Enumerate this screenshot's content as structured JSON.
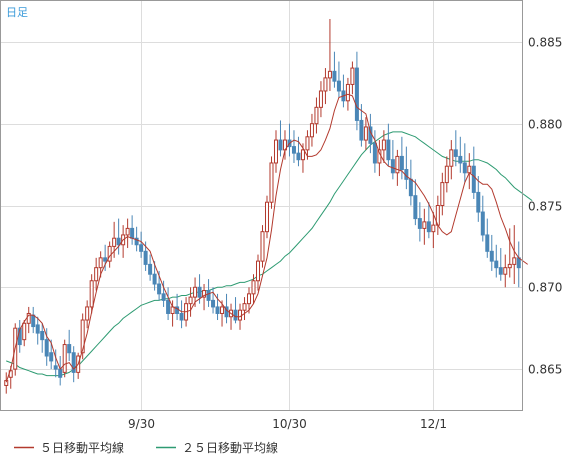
{
  "corner_label": "日足",
  "chart_data": {
    "type": "candlestick",
    "title": "",
    "xlabel": "",
    "ylabel": "",
    "ylim": [
      0.8625,
      0.8875
    ],
    "yticks": [
      0.865,
      0.87,
      0.875,
      0.88,
      0.885
    ],
    "ytick_labels": [
      "0.865",
      "0.870",
      "0.875",
      "0.880",
      "0.885"
    ],
    "xtick_labels": [
      {
        "index": 30,
        "label": "9/30"
      },
      {
        "index": 63,
        "label": "10/30"
      },
      {
        "index": 95,
        "label": "12/1"
      }
    ],
    "grid": true,
    "legend_position": "bottom",
    "colors": {
      "up": "#b33a2e",
      "down": "#4a86b6",
      "ma5": "#b33a2e",
      "ma25": "#2e9b72",
      "corner": "#3a9ad9"
    },
    "series": [
      {
        "name": "５日移動平均線",
        "key": "ma5",
        "values": [
          0.8642,
          0.865,
          0.8663,
          0.8674,
          0.8679,
          0.8683,
          0.8683,
          0.8681,
          0.8678,
          0.867,
          0.8666,
          0.8657,
          0.865,
          0.8653,
          0.8654,
          0.865,
          0.8653,
          0.8662,
          0.8672,
          0.8685,
          0.8697,
          0.8708,
          0.8714,
          0.8719,
          0.8722,
          0.8725,
          0.8729,
          0.8731,
          0.873,
          0.8729,
          0.8728,
          0.8725,
          0.8722,
          0.8714,
          0.8707,
          0.87,
          0.8694,
          0.8688,
          0.8687,
          0.8685,
          0.8685,
          0.8686,
          0.8691,
          0.8693,
          0.8695,
          0.8696,
          0.8697,
          0.8693,
          0.869,
          0.8686,
          0.8684,
          0.8682,
          0.8682,
          0.8684,
          0.8686,
          0.869,
          0.8696,
          0.8707,
          0.8718,
          0.8735,
          0.8756,
          0.8772,
          0.8784,
          0.8788,
          0.879,
          0.8789,
          0.8785,
          0.878,
          0.878,
          0.8781,
          0.8784,
          0.879,
          0.8797,
          0.8808,
          0.8816,
          0.8817,
          0.8818,
          0.8817,
          0.881,
          0.8808,
          0.8806,
          0.8795,
          0.879,
          0.8782,
          0.8777,
          0.8774,
          0.8773,
          0.8772,
          0.8771,
          0.8768,
          0.8766,
          0.8764,
          0.876,
          0.8756,
          0.8751,
          0.8745,
          0.8738,
          0.8734,
          0.8732,
          0.8734,
          0.8744,
          0.8754,
          0.8764,
          0.877,
          0.8768,
          0.8765,
          0.8763,
          0.8763,
          0.876,
          0.8752,
          0.8743,
          0.8736,
          0.8728,
          0.8722,
          0.8718,
          0.8716,
          0.8714
        ]
      },
      {
        "name": "２５日移動平均線",
        "key": "ma25",
        "values": [
          0.8655,
          0.8654,
          0.8653,
          0.8651,
          0.865,
          0.8649,
          0.8648,
          0.8647,
          0.8647,
          0.8646,
          0.8646,
          0.8646,
          0.8646,
          0.8647,
          0.8648,
          0.865,
          0.8652,
          0.8655,
          0.8658,
          0.8661,
          0.8664,
          0.8667,
          0.867,
          0.8673,
          0.8676,
          0.8678,
          0.8681,
          0.8683,
          0.8685,
          0.8687,
          0.8689,
          0.869,
          0.8691,
          0.8692,
          0.8692,
          0.8693,
          0.8693,
          0.8694,
          0.8694,
          0.8695,
          0.8695,
          0.8696,
          0.8697,
          0.8697,
          0.8698,
          0.8698,
          0.8699,
          0.87,
          0.87,
          0.8701,
          0.8701,
          0.8702,
          0.8703,
          0.8703,
          0.8704,
          0.8705,
          0.8707,
          0.8708,
          0.871,
          0.8712,
          0.8714,
          0.8716,
          0.8719,
          0.8721,
          0.8724,
          0.8727,
          0.873,
          0.8733,
          0.8736,
          0.874,
          0.8744,
          0.8748,
          0.8752,
          0.8757,
          0.8761,
          0.8765,
          0.8769,
          0.8773,
          0.8777,
          0.8781,
          0.8784,
          0.8787,
          0.8789,
          0.8791,
          0.8793,
          0.8794,
          0.8795,
          0.8795,
          0.8795,
          0.8794,
          0.8793,
          0.8792,
          0.879,
          0.8788,
          0.8786,
          0.8784,
          0.8782,
          0.878,
          0.8779,
          0.8778,
          0.8777,
          0.8777,
          0.8777,
          0.8777,
          0.8778,
          0.8778,
          0.8777,
          0.8776,
          0.8774,
          0.8772,
          0.8769,
          0.8767,
          0.8764,
          0.8761,
          0.8759,
          0.8757,
          0.8755,
          0.8753
        ]
      }
    ],
    "candles": [
      [
        0.864,
        0.8648,
        0.8635,
        0.8643
      ],
      [
        0.8645,
        0.8652,
        0.8638,
        0.8649
      ],
      [
        0.865,
        0.8678,
        0.8646,
        0.8675
      ],
      [
        0.8675,
        0.868,
        0.866,
        0.8665
      ],
      [
        0.8668,
        0.868,
        0.8664,
        0.8678
      ],
      [
        0.8678,
        0.8688,
        0.8672,
        0.8684
      ],
      [
        0.8683,
        0.8688,
        0.8672,
        0.8676
      ],
      [
        0.8677,
        0.8682,
        0.8665,
        0.8672
      ],
      [
        0.8673,
        0.8678,
        0.866,
        0.8668
      ],
      [
        0.8668,
        0.8675,
        0.8652,
        0.8658
      ],
      [
        0.866,
        0.8668,
        0.865,
        0.8655
      ],
      [
        0.8652,
        0.8662,
        0.8645,
        0.865
      ],
      [
        0.865,
        0.8658,
        0.864,
        0.8645
      ],
      [
        0.8648,
        0.8668,
        0.8645,
        0.8665
      ],
      [
        0.8665,
        0.8674,
        0.8655,
        0.866
      ],
      [
        0.866,
        0.8664,
        0.8642,
        0.8648
      ],
      [
        0.8648,
        0.866,
        0.8644,
        0.8658
      ],
      [
        0.866,
        0.8684,
        0.8656,
        0.868
      ],
      [
        0.868,
        0.8692,
        0.8675,
        0.8688
      ],
      [
        0.8688,
        0.8708,
        0.8684,
        0.8704
      ],
      [
        0.8704,
        0.8718,
        0.8698,
        0.8712
      ],
      [
        0.8712,
        0.8722,
        0.8706,
        0.8718
      ],
      [
        0.8718,
        0.8726,
        0.871,
        0.8716
      ],
      [
        0.8716,
        0.8728,
        0.8712,
        0.8725
      ],
      [
        0.8725,
        0.874,
        0.8718,
        0.873
      ],
      [
        0.873,
        0.8742,
        0.872,
        0.8726
      ],
      [
        0.8726,
        0.8738,
        0.8718,
        0.8732
      ],
      [
        0.8732,
        0.8742,
        0.8724,
        0.8736
      ],
      [
        0.8736,
        0.8744,
        0.8726,
        0.873
      ],
      [
        0.873,
        0.8737,
        0.8722,
        0.8726
      ],
      [
        0.8726,
        0.8734,
        0.8718,
        0.8722
      ],
      [
        0.8722,
        0.8728,
        0.871,
        0.8714
      ],
      [
        0.8714,
        0.872,
        0.8704,
        0.8708
      ],
      [
        0.8708,
        0.8716,
        0.8698,
        0.8702
      ],
      [
        0.8702,
        0.871,
        0.8692,
        0.8696
      ],
      [
        0.8696,
        0.8704,
        0.8688,
        0.8692
      ],
      [
        0.8692,
        0.87,
        0.868,
        0.8684
      ],
      [
        0.8684,
        0.8692,
        0.8676,
        0.8688
      ],
      [
        0.8688,
        0.8696,
        0.868,
        0.8684
      ],
      [
        0.8684,
        0.8692,
        0.8675,
        0.868
      ],
      [
        0.868,
        0.8694,
        0.8676,
        0.869
      ],
      [
        0.869,
        0.87,
        0.8682,
        0.8694
      ],
      [
        0.8694,
        0.8706,
        0.8688,
        0.87
      ],
      [
        0.87,
        0.8708,
        0.869,
        0.8694
      ],
      [
        0.8694,
        0.8702,
        0.8686,
        0.8698
      ],
      [
        0.8698,
        0.8705,
        0.8688,
        0.8692
      ],
      [
        0.8692,
        0.87,
        0.8684,
        0.8688
      ],
      [
        0.8688,
        0.8696,
        0.868,
        0.8684
      ],
      [
        0.8684,
        0.8692,
        0.8676,
        0.8688
      ],
      [
        0.8688,
        0.8696,
        0.8678,
        0.8682
      ],
      [
        0.8682,
        0.869,
        0.8674,
        0.8686
      ],
      [
        0.8686,
        0.8694,
        0.8678,
        0.868
      ],
      [
        0.868,
        0.869,
        0.8674,
        0.8686
      ],
      [
        0.8686,
        0.8694,
        0.868,
        0.869
      ],
      [
        0.869,
        0.87,
        0.8684,
        0.8696
      ],
      [
        0.8696,
        0.8708,
        0.869,
        0.8704
      ],
      [
        0.8704,
        0.872,
        0.8698,
        0.8716
      ],
      [
        0.8716,
        0.8738,
        0.8712,
        0.8734
      ],
      [
        0.8734,
        0.8756,
        0.873,
        0.8752
      ],
      [
        0.8752,
        0.878,
        0.8748,
        0.8776
      ],
      [
        0.8776,
        0.8796,
        0.877,
        0.879
      ],
      [
        0.879,
        0.8802,
        0.878,
        0.8784
      ],
      [
        0.8784,
        0.8796,
        0.8778,
        0.879
      ],
      [
        0.879,
        0.88,
        0.878,
        0.8786
      ],
      [
        0.8786,
        0.8796,
        0.8776,
        0.8782
      ],
      [
        0.8782,
        0.8792,
        0.8774,
        0.8778
      ],
      [
        0.8778,
        0.8788,
        0.877,
        0.8784
      ],
      [
        0.8784,
        0.8796,
        0.8778,
        0.8792
      ],
      [
        0.8792,
        0.8806,
        0.8786,
        0.88
      ],
      [
        0.88,
        0.8816,
        0.8794,
        0.881
      ],
      [
        0.881,
        0.8826,
        0.8804,
        0.882
      ],
      [
        0.882,
        0.8834,
        0.8812,
        0.8828
      ],
      [
        0.8828,
        0.8864,
        0.882,
        0.8832
      ],
      [
        0.8832,
        0.8844,
        0.8822,
        0.8826
      ],
      [
        0.8826,
        0.8838,
        0.8816,
        0.882
      ],
      [
        0.882,
        0.883,
        0.881,
        0.8814
      ],
      [
        0.8814,
        0.8828,
        0.8808,
        0.8824
      ],
      [
        0.8824,
        0.8838,
        0.8818,
        0.8834
      ],
      [
        0.8834,
        0.8844,
        0.8796,
        0.8802
      ],
      [
        0.8802,
        0.8812,
        0.8786,
        0.879
      ],
      [
        0.879,
        0.8804,
        0.8784,
        0.8798
      ],
      [
        0.8798,
        0.8806,
        0.8782,
        0.8788
      ],
      [
        0.8788,
        0.8796,
        0.877,
        0.8776
      ],
      [
        0.8776,
        0.879,
        0.8768,
        0.8784
      ],
      [
        0.8784,
        0.8796,
        0.8776,
        0.879
      ],
      [
        0.879,
        0.88,
        0.8774,
        0.8778
      ],
      [
        0.8778,
        0.879,
        0.8766,
        0.877
      ],
      [
        0.877,
        0.8784,
        0.8762,
        0.878
      ],
      [
        0.878,
        0.8792,
        0.8766,
        0.8772
      ],
      [
        0.8772,
        0.8786,
        0.876,
        0.8766
      ],
      [
        0.8766,
        0.8778,
        0.875,
        0.8756
      ],
      [
        0.8756,
        0.8766,
        0.8738,
        0.8742
      ],
      [
        0.8742,
        0.8752,
        0.8728,
        0.8736
      ],
      [
        0.8736,
        0.8748,
        0.8726,
        0.874
      ],
      [
        0.874,
        0.8752,
        0.873,
        0.8734
      ],
      [
        0.8734,
        0.8746,
        0.8724,
        0.8738
      ],
      [
        0.8738,
        0.8756,
        0.8732,
        0.875
      ],
      [
        0.875,
        0.877,
        0.8744,
        0.8764
      ],
      [
        0.8764,
        0.878,
        0.8758,
        0.8774
      ],
      [
        0.8774,
        0.879,
        0.8766,
        0.8784
      ],
      [
        0.8784,
        0.8796,
        0.8774,
        0.878
      ],
      [
        0.878,
        0.8792,
        0.877,
        0.8776
      ],
      [
        0.8776,
        0.8788,
        0.8764,
        0.877
      ],
      [
        0.877,
        0.8782,
        0.876,
        0.8774
      ],
      [
        0.8774,
        0.8786,
        0.8754,
        0.8758
      ],
      [
        0.8758,
        0.8768,
        0.874,
        0.8746
      ],
      [
        0.8746,
        0.8756,
        0.8728,
        0.8732
      ],
      [
        0.8732,
        0.8742,
        0.8718,
        0.8722
      ],
      [
        0.8722,
        0.8732,
        0.871,
        0.8716
      ],
      [
        0.8716,
        0.8726,
        0.8706,
        0.8712
      ],
      [
        0.8712,
        0.8724,
        0.8704,
        0.8708
      ],
      [
        0.8708,
        0.872,
        0.87,
        0.8712
      ],
      [
        0.8712,
        0.8736,
        0.8706,
        0.8714
      ],
      [
        0.8714,
        0.8738,
        0.8702,
        0.8718
      ],
      [
        0.8718,
        0.8728,
        0.87,
        0.8712
      ]
    ]
  }
}
